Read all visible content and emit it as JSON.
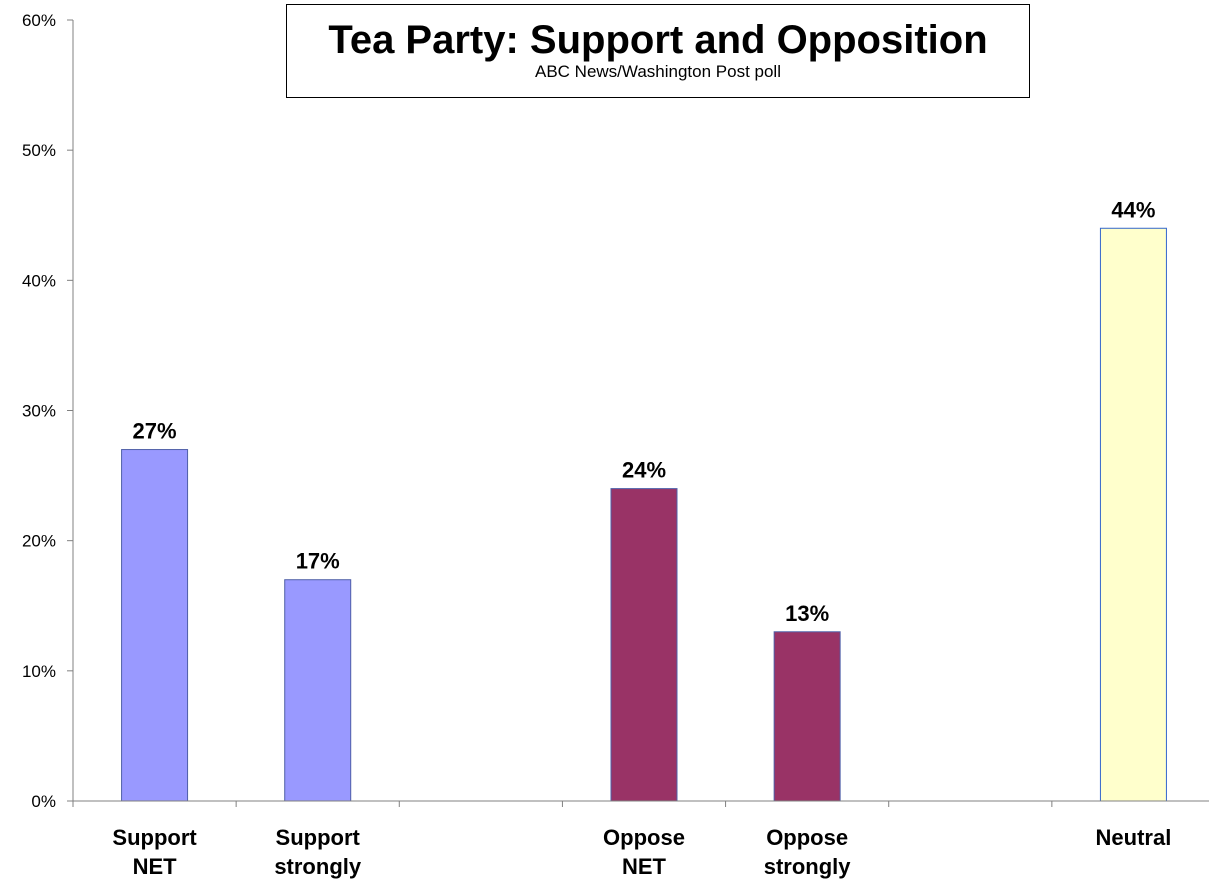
{
  "chart_data": {
    "type": "bar",
    "title": "Tea Party: Support and Opposition",
    "subtitle": "ABC News/Washington Post poll",
    "categories": [
      [
        "Support",
        "NET"
      ],
      [
        "Support",
        "strongly"
      ],
      [],
      [
        "Oppose",
        "NET"
      ],
      [
        "Oppose",
        "strongly"
      ],
      [],
      [
        "Neutral"
      ]
    ],
    "values": [
      27,
      17,
      null,
      24,
      13,
      null,
      44
    ],
    "data_labels": [
      "27%",
      "17%",
      "",
      "24%",
      "13%",
      "",
      "44%"
    ],
    "bar_colors": [
      "#9999ff",
      "#9999ff",
      null,
      "#993366",
      "#993366",
      null,
      "#ffffcc"
    ],
    "ylim": [
      0,
      60
    ],
    "yticks": [
      "0%",
      "10%",
      "20%",
      "30%",
      "40%",
      "50%",
      "60%"
    ],
    "grid": false,
    "legend": "none"
  }
}
